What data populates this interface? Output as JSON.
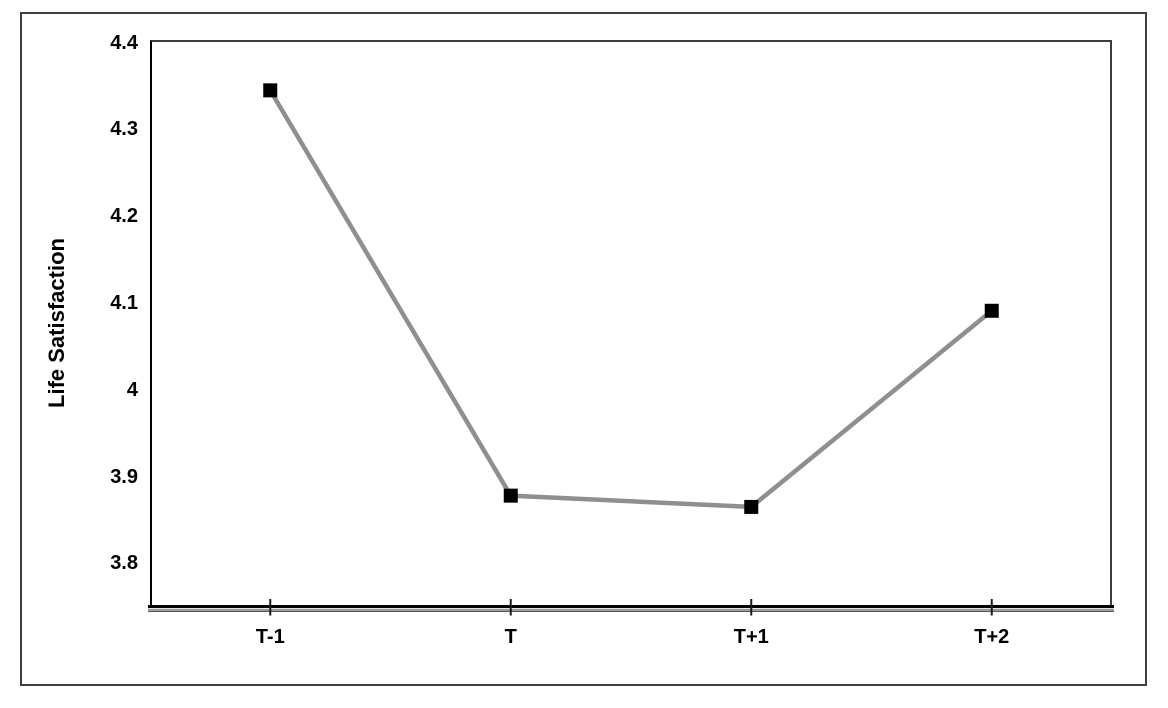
{
  "chart_data": {
    "type": "line",
    "title": "",
    "xlabel": "",
    "ylabel": "Life Satisfaction",
    "categories": [
      "T-1",
      "T",
      "T+1",
      "T+2"
    ],
    "series": [
      {
        "name": "Life Satisfaction",
        "values": [
          4.345,
          3.878,
          3.865,
          4.091
        ]
      }
    ],
    "ytick_labels": [
      "4.4",
      "4.3",
      "4.2",
      "4.1",
      "4",
      "3.9",
      "3.8"
    ],
    "ytick_values": [
      4.4,
      4.3,
      4.2,
      4.1,
      4.0,
      3.9,
      3.8
    ],
    "ylim": [
      3.752,
      4.403
    ],
    "grid": false,
    "legend_position": "none",
    "marker": "square",
    "colors": {
      "line": "#8f8f8f",
      "marker": "#000000",
      "axis": "#000000",
      "tick": "#1a1a1a",
      "frame": "#3f3f3f",
      "text": "#000000"
    }
  }
}
